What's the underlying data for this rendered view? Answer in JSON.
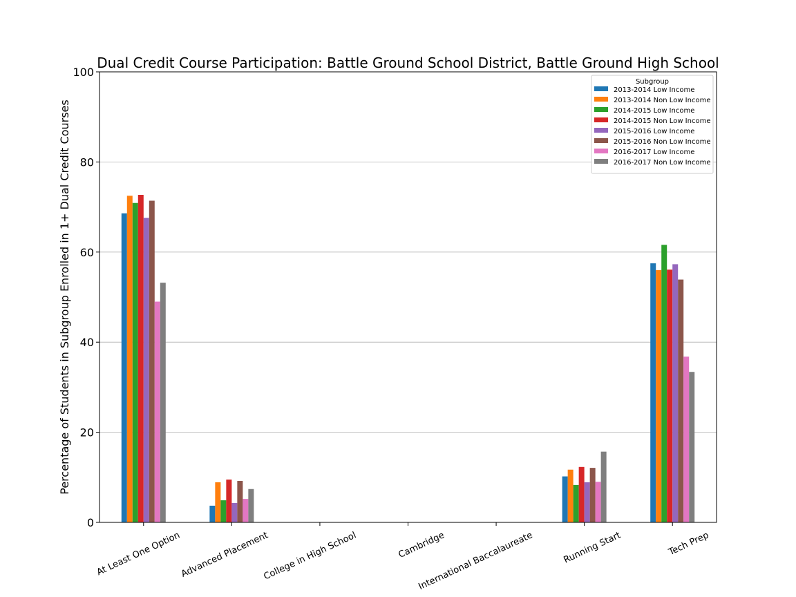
{
  "chart_data": {
    "type": "bar",
    "title": "Dual Credit Course Participation: Battle Ground School District, Battle Ground High School",
    "xlabel": "",
    "ylabel": "Percentage of Students in Subgroup Enrolled in 1+ Dual Credit Courses",
    "ylim": [
      0,
      100
    ],
    "yticks": [
      0,
      20,
      40,
      60,
      80,
      100
    ],
    "grid": "y",
    "legend": {
      "title": "Subgroup",
      "placement": "top-right"
    },
    "categories": [
      "At Least One Option",
      "Advanced Placement",
      "College in High School",
      "Cambridge",
      "International Baccalaureate",
      "Running Start",
      "Tech Prep"
    ],
    "series": [
      {
        "name": "2013-2014 Low Income",
        "color": "#1f77b4",
        "values": [
          68.6,
          3.7,
          0,
          0,
          0,
          10.2,
          57.5
        ]
      },
      {
        "name": "2013-2014 Non Low Income",
        "color": "#ff7f0e",
        "values": [
          72.5,
          8.9,
          0,
          0,
          0,
          11.7,
          56.0
        ]
      },
      {
        "name": "2014-2015 Low Income",
        "color": "#2ca02c",
        "values": [
          70.9,
          4.9,
          0,
          0,
          0,
          8.3,
          61.6
        ]
      },
      {
        "name": "2014-2015 Non Low Income",
        "color": "#d62728",
        "values": [
          72.7,
          9.5,
          0,
          0,
          0,
          12.3,
          56.1
        ]
      },
      {
        "name": "2015-2016 Low Income",
        "color": "#9467bd",
        "values": [
          67.6,
          4.3,
          0,
          0,
          0,
          8.9,
          57.3
        ]
      },
      {
        "name": "2015-2016 Non Low Income",
        "color": "#8c564b",
        "values": [
          71.4,
          9.2,
          0,
          0,
          0,
          12.1,
          53.9
        ]
      },
      {
        "name": "2016-2017 Low Income",
        "color": "#e377c2",
        "values": [
          49.0,
          5.2,
          0,
          0,
          0,
          9.0,
          36.8
        ]
      },
      {
        "name": "2016-2017 Non Low Income",
        "color": "#7f7f7f",
        "values": [
          53.2,
          7.4,
          0,
          0,
          0,
          15.7,
          33.4
        ]
      }
    ]
  }
}
